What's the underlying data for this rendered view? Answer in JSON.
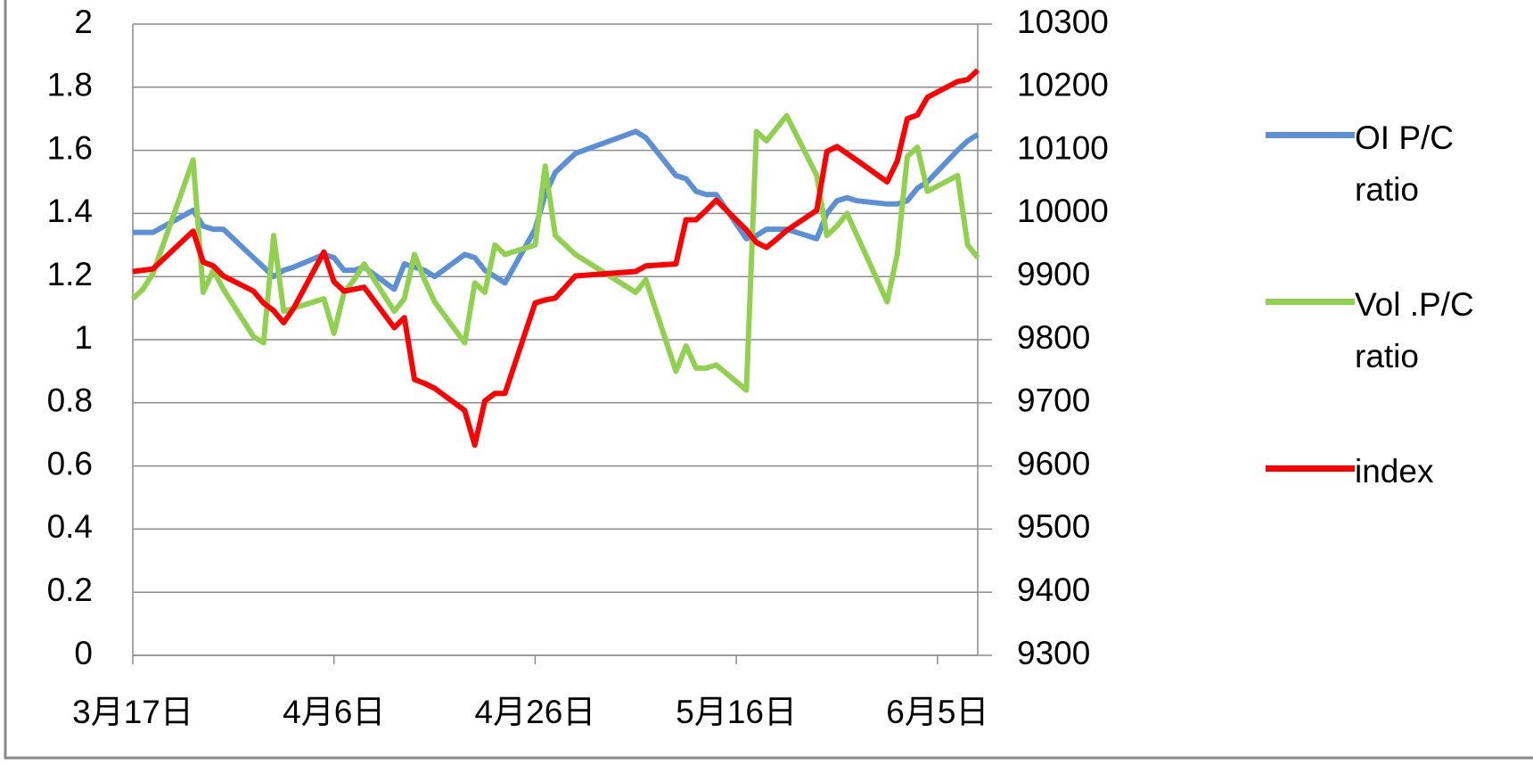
{
  "chart_data": {
    "type": "line",
    "x": [
      "3月17日",
      "3月18日",
      "3月19日",
      "3月23日",
      "3月24日",
      "3月25日",
      "3月26日",
      "3月29日",
      "3月30日",
      "3月31日",
      "4月1日",
      "4月2日",
      "4月5日",
      "4月6日",
      "4月7日",
      "4月8日",
      "4月9日",
      "4月12日",
      "4月13日",
      "4月14日",
      "4月15日",
      "4月16日",
      "4月19日",
      "4月20日",
      "4月21日",
      "4月22日",
      "4月23日",
      "4月26日",
      "4月27日",
      "4月28日",
      "4月30日",
      "5月6日",
      "5月7日",
      "5月10日",
      "5月11日",
      "5月12日",
      "5月13日",
      "5月14日",
      "5月17日",
      "5月18日",
      "5月19日",
      "5月20日",
      "5月21日",
      "5月24日",
      "5月25日",
      "5月26日",
      "5月27日",
      "5月28日",
      "5月31日",
      "6月1日",
      "6月2日",
      "6月3日",
      "6月4日",
      "6月7日",
      "6月8日",
      "6月9日"
    ],
    "xlim": [
      "3月17日",
      "6月9日"
    ],
    "xticks": [
      "3月17日",
      "4月6日",
      "4月26日",
      "5月16日",
      "6月5日"
    ],
    "ylim": [
      0,
      2
    ],
    "yticks": [
      0,
      0.2,
      0.4,
      0.6,
      0.8,
      1,
      1.2,
      1.4,
      1.6,
      1.8,
      2
    ],
    "y2lim": [
      9300,
      10300
    ],
    "y2ticks": [
      9300,
      9400,
      9500,
      9600,
      9700,
      9800,
      9900,
      10000,
      10100,
      10200,
      10300
    ],
    "grid": true,
    "legend": "right",
    "series": [
      {
        "name": "OI P/C ratio",
        "color": "#5b8fd6",
        "values": [
          1.34,
          1.34,
          1.34,
          1.41,
          1.36,
          1.35,
          1.35,
          1.26,
          1.23,
          1.2,
          1.22,
          1.23,
          1.27,
          1.26,
          1.22,
          1.22,
          1.23,
          1.16,
          1.24,
          1.23,
          1.22,
          1.2,
          1.27,
          1.26,
          1.22,
          1.2,
          1.18,
          1.35,
          1.46,
          1.53,
          1.59,
          1.66,
          1.64,
          1.52,
          1.51,
          1.47,
          1.46,
          1.46,
          1.32,
          1.33,
          1.35,
          1.35,
          1.35,
          1.32,
          1.4,
          1.44,
          1.45,
          1.44,
          1.43,
          1.43,
          1.44,
          1.48,
          1.5,
          1.6,
          1.63,
          1.65
        ]
      },
      {
        "name": "Vol .P/C ratio",
        "color": "#92d050",
        "values": [
          1.13,
          1.16,
          1.21,
          1.57,
          1.15,
          1.22,
          1.16,
          1.01,
          0.99,
          1.33,
          1.09,
          1.1,
          1.13,
          1.02,
          1.15,
          1.19,
          1.24,
          1.09,
          1.13,
          1.27,
          1.19,
          1.12,
          0.99,
          1.18,
          1.15,
          1.3,
          1.27,
          1.3,
          1.55,
          1.33,
          1.27,
          1.15,
          1.19,
          0.9,
          0.98,
          0.91,
          0.91,
          0.92,
          0.84,
          1.66,
          1.63,
          1.67,
          1.71,
          1.52,
          1.33,
          1.36,
          1.4,
          1.33,
          1.12,
          1.27,
          1.58,
          1.61,
          1.47,
          1.52,
          1.3,
          1.26
        ]
      },
      {
        "name": "index",
        "color": "#ff0000",
        "axis": "y2",
        "values": [
          9908,
          9910,
          9912,
          9972,
          9923,
          9917,
          9901,
          9877,
          9858,
          9846,
          9827,
          9850,
          9939,
          9892,
          9877,
          9880,
          9883,
          9819,
          9835,
          9737,
          9731,
          9723,
          9688,
          9633,
          9703,
          9715,
          9715,
          9858,
          9863,
          9866,
          9901,
          9908,
          9917,
          9920,
          9990,
          9990,
          10005,
          10021,
          9974,
          9954,
          9946,
          9959,
          9973,
          10005,
          10098,
          10106,
          10095,
          10084,
          10050,
          10083,
          10150,
          10156,
          10184,
          10209,
          10212,
          10227
        ]
      }
    ]
  }
}
